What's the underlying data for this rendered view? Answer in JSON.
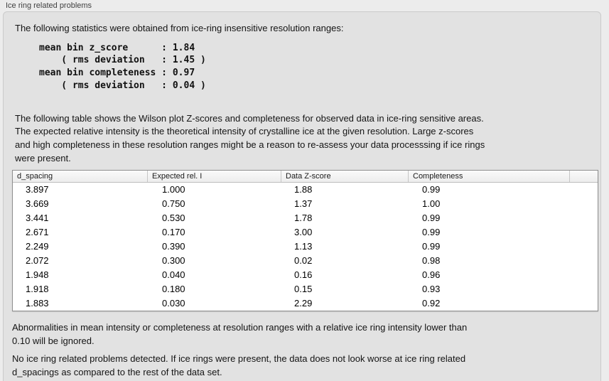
{
  "header": {
    "title": "Ice ring related problems"
  },
  "panel": {
    "intro": "The following statistics were obtained from ice-ring insensitive resolution ranges:",
    "stats_block": "mean bin z_score      : 1.84\n    ( rms deviation   : 1.45 )\nmean bin completeness : 0.97\n    ( rms deviation   : 0.04 )",
    "table_description": "The following table shows the Wilson plot Z-scores and completeness for observed data in ice-ring sensitive areas.\nThe expected relative intensity is the theoretical intensity of crystalline ice at the given resolution. Large z-scores\nand high completeness in these resolution ranges might be a reason to re-assess your data processsing if ice rings\nwere present.",
    "ignore_note": "Abnormalities in mean intensity or completeness at resolution ranges with a relative ice ring intensity lower than\n0.10 will be ignored.",
    "conclusion": "No ice ring related problems detected. If ice rings were present, the data does not look worse at ice ring related\nd_spacings as compared to the rest of the data set."
  },
  "stats": {
    "mean_bin_z_score": "1.84",
    "z_score_rms_deviation": "1.45",
    "mean_bin_completeness": "0.97",
    "completeness_rms_deviation": "0.04"
  },
  "table": {
    "columns": [
      "d_spacing",
      "Expected rel. I",
      "Data Z-score",
      "Completeness",
      ""
    ],
    "rows": [
      [
        "3.897",
        "1.000",
        "1.88",
        "0.99"
      ],
      [
        "3.669",
        "0.750",
        "1.37",
        "1.00"
      ],
      [
        "3.441",
        "0.530",
        "1.78",
        "0.99"
      ],
      [
        "2.671",
        "0.170",
        "3.00",
        "0.99"
      ],
      [
        "2.249",
        "0.390",
        "1.13",
        "0.99"
      ],
      [
        "2.072",
        "0.300",
        "0.02",
        "0.98"
      ],
      [
        "1.948",
        "0.040",
        "0.16",
        "0.96"
      ],
      [
        "1.918",
        "0.180",
        "0.15",
        "0.93"
      ],
      [
        "1.883",
        "0.030",
        "2.29",
        "0.92"
      ]
    ]
  },
  "colors": {
    "page_bg": "#ececec",
    "panel_bg": "#e2e2e2",
    "panel_border": "#cbcbcb",
    "table_border": "#8f8f8f",
    "table_header_bg": "#f4f4f4",
    "table_body_bg": "#ffffff"
  }
}
